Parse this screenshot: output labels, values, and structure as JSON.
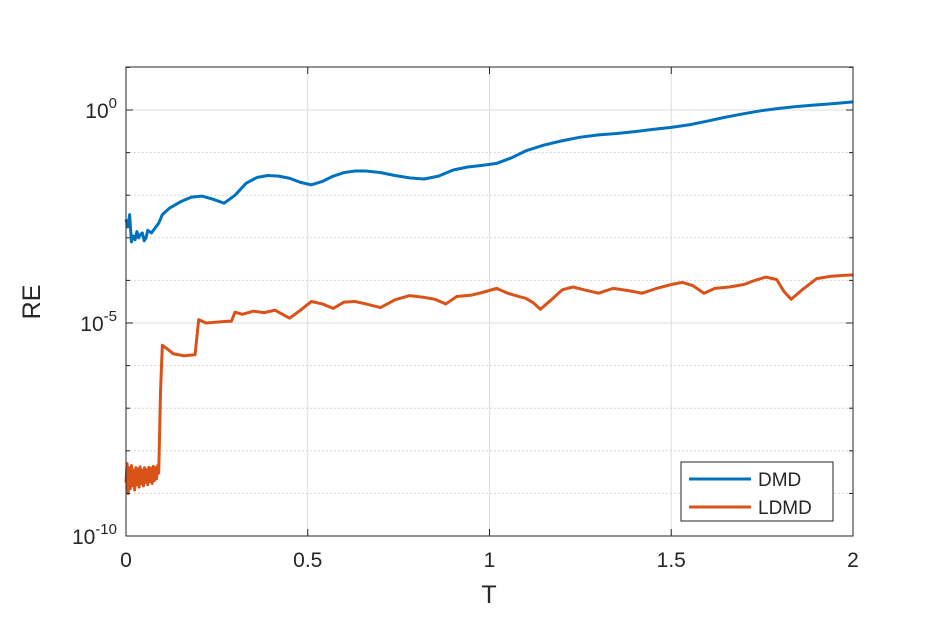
{
  "chart_data": {
    "type": "line",
    "title": "",
    "xlabel": "T",
    "ylabel": "RE",
    "xlim": [
      0,
      2
    ],
    "ylim_log10": [
      -10,
      1
    ],
    "yscale": "log",
    "grid": true,
    "minor_grid_y": true,
    "legend_position": "bottom-right",
    "x_ticks": [
      {
        "value": 0,
        "label": "0"
      },
      {
        "value": 0.5,
        "label": "0.5"
      },
      {
        "value": 1,
        "label": "1"
      },
      {
        "value": 1.5,
        "label": "1.5"
      },
      {
        "value": 2,
        "label": "2"
      }
    ],
    "y_ticks": [
      {
        "exp": 0,
        "base": "10",
        "sup": "0"
      },
      {
        "exp": -5,
        "base": "10",
        "sup": "-5"
      },
      {
        "exp": -10,
        "base": "10",
        "sup": "-10"
      }
    ],
    "series": [
      {
        "name": "DMD",
        "color": "#0072BD",
        "points": [
          [
            0.0,
            0.0027
          ],
          [
            0.005,
            0.0018
          ],
          [
            0.01,
            0.0035
          ],
          [
            0.015,
            0.0008
          ],
          [
            0.02,
            0.0011
          ],
          [
            0.025,
            0.0009
          ],
          [
            0.03,
            0.0014
          ],
          [
            0.035,
            0.001
          ],
          [
            0.04,
            0.0012
          ],
          [
            0.045,
            0.0013
          ],
          [
            0.05,
            0.00085
          ],
          [
            0.055,
            0.001
          ],
          [
            0.06,
            0.0015
          ],
          [
            0.07,
            0.0013
          ],
          [
            0.08,
            0.0017
          ],
          [
            0.09,
            0.0022
          ],
          [
            0.1,
            0.0035
          ],
          [
            0.12,
            0.005
          ],
          [
            0.15,
            0.007
          ],
          [
            0.18,
            0.009
          ],
          [
            0.21,
            0.0095
          ],
          [
            0.24,
            0.008
          ],
          [
            0.27,
            0.0065
          ],
          [
            0.3,
            0.01
          ],
          [
            0.33,
            0.019
          ],
          [
            0.36,
            0.026
          ],
          [
            0.39,
            0.029
          ],
          [
            0.42,
            0.028
          ],
          [
            0.45,
            0.025
          ],
          [
            0.48,
            0.02
          ],
          [
            0.51,
            0.0175
          ],
          [
            0.54,
            0.021
          ],
          [
            0.57,
            0.028
          ],
          [
            0.6,
            0.034
          ],
          [
            0.63,
            0.037
          ],
          [
            0.66,
            0.037
          ],
          [
            0.7,
            0.034
          ],
          [
            0.74,
            0.029
          ],
          [
            0.78,
            0.0255
          ],
          [
            0.82,
            0.024
          ],
          [
            0.86,
            0.028
          ],
          [
            0.9,
            0.039
          ],
          [
            0.94,
            0.046
          ],
          [
            0.98,
            0.05
          ],
          [
            1.02,
            0.056
          ],
          [
            1.06,
            0.075
          ],
          [
            1.1,
            0.11
          ],
          [
            1.15,
            0.15
          ],
          [
            1.2,
            0.19
          ],
          [
            1.25,
            0.23
          ],
          [
            1.3,
            0.26
          ],
          [
            1.35,
            0.28
          ],
          [
            1.4,
            0.31
          ],
          [
            1.45,
            0.35
          ],
          [
            1.5,
            0.39
          ],
          [
            1.55,
            0.45
          ],
          [
            1.6,
            0.55
          ],
          [
            1.65,
            0.68
          ],
          [
            1.7,
            0.82
          ],
          [
            1.75,
            0.97
          ],
          [
            1.8,
            1.1
          ],
          [
            1.85,
            1.22
          ],
          [
            1.9,
            1.32
          ],
          [
            1.95,
            1.42
          ],
          [
            2.0,
            1.55
          ]
        ]
      },
      {
        "name": "LDMD",
        "color": "#D95319",
        "points": [
          [
            0.0,
            1.8e-09
          ],
          [
            0.003,
            5e-09
          ],
          [
            0.006,
            1e-09
          ],
          [
            0.009,
            4e-09
          ],
          [
            0.012,
            1.3e-09
          ],
          [
            0.015,
            4.5e-09
          ],
          [
            0.018,
            1.5e-09
          ],
          [
            0.021,
            3.5e-09
          ],
          [
            0.024,
            1.2e-09
          ],
          [
            0.027,
            4e-09
          ],
          [
            0.03,
            1.6e-09
          ],
          [
            0.033,
            3.8e-09
          ],
          [
            0.036,
            1.4e-09
          ],
          [
            0.039,
            4.2e-09
          ],
          [
            0.042,
            1.7e-09
          ],
          [
            0.045,
            3.5e-09
          ],
          [
            0.048,
            1.5e-09
          ],
          [
            0.051,
            4e-09
          ],
          [
            0.054,
            1.8e-09
          ],
          [
            0.057,
            3.6e-09
          ],
          [
            0.06,
            1.6e-09
          ],
          [
            0.063,
            4.1e-09
          ],
          [
            0.066,
            1.9e-09
          ],
          [
            0.069,
            3.9e-09
          ],
          [
            0.072,
            1.7e-09
          ],
          [
            0.075,
            4.3e-09
          ],
          [
            0.078,
            2e-09
          ],
          [
            0.081,
            4e-09
          ],
          [
            0.084,
            2.2e-09
          ],
          [
            0.087,
            4.5e-09
          ],
          [
            0.09,
            3e-09
          ],
          [
            0.095,
            2.5e-07
          ],
          [
            0.1,
            3e-06
          ],
          [
            0.11,
            2.6e-06
          ],
          [
            0.13,
            1.9e-06
          ],
          [
            0.16,
            1.7e-06
          ],
          [
            0.19,
            1.8e-06
          ],
          [
            0.2,
            1.2e-05
          ],
          [
            0.22,
            1e-05
          ],
          [
            0.25,
            1.05e-05
          ],
          [
            0.28,
            1.1e-05
          ],
          [
            0.29,
            1.1e-05
          ],
          [
            0.3,
            1.8e-05
          ],
          [
            0.32,
            1.6e-05
          ],
          [
            0.35,
            1.9e-05
          ],
          [
            0.38,
            1.75e-05
          ],
          [
            0.41,
            2e-05
          ],
          [
            0.45,
            1.3e-05
          ],
          [
            0.48,
            2e-05
          ],
          [
            0.51,
            3.2e-05
          ],
          [
            0.54,
            2.8e-05
          ],
          [
            0.57,
            2.2e-05
          ],
          [
            0.6,
            3.1e-05
          ],
          [
            0.63,
            3.2e-05
          ],
          [
            0.66,
            2.8e-05
          ],
          [
            0.7,
            2.3e-05
          ],
          [
            0.74,
            3.5e-05
          ],
          [
            0.78,
            4.4e-05
          ],
          [
            0.82,
            4e-05
          ],
          [
            0.85,
            3.6e-05
          ],
          [
            0.88,
            2.8e-05
          ],
          [
            0.91,
            4.2e-05
          ],
          [
            0.95,
            4.5e-05
          ],
          [
            0.98,
            5.2e-05
          ],
          [
            1.02,
            6.5e-05
          ],
          [
            1.05,
            5e-05
          ],
          [
            1.08,
            4.2e-05
          ],
          [
            1.1,
            3.8e-05
          ],
          [
            1.12,
            3e-05
          ],
          [
            1.14,
            2.1e-05
          ],
          [
            1.17,
            3.5e-05
          ],
          [
            1.2,
            6e-05
          ],
          [
            1.23,
            7e-05
          ],
          [
            1.26,
            6e-05
          ],
          [
            1.3,
            5e-05
          ],
          [
            1.34,
            6.5e-05
          ],
          [
            1.38,
            5.8e-05
          ],
          [
            1.42,
            5e-05
          ],
          [
            1.46,
            6.5e-05
          ],
          [
            1.5,
            8e-05
          ],
          [
            1.53,
            9e-05
          ],
          [
            1.56,
            7.5e-05
          ],
          [
            1.59,
            5e-05
          ],
          [
            1.62,
            6.5e-05
          ],
          [
            1.66,
            7e-05
          ],
          [
            1.7,
            8e-05
          ],
          [
            1.73,
            0.0001
          ],
          [
            1.76,
            0.00012
          ],
          [
            1.79,
            0.000105
          ],
          [
            1.81,
            5.5e-05
          ],
          [
            1.83,
            3.6e-05
          ],
          [
            1.86,
            6e-05
          ],
          [
            1.9,
            0.00011
          ],
          [
            1.94,
            0.000125
          ],
          [
            1.97,
            0.00013
          ],
          [
            2.0,
            0.000135
          ]
        ]
      }
    ]
  }
}
